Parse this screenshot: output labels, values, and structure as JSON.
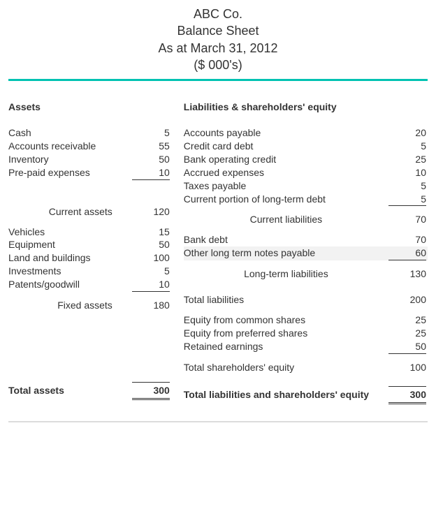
{
  "colors": {
    "teal": "#00c2b2",
    "text": "#333333",
    "highlight_bg": "#f2f2f2",
    "footer_rule": "#dcdcdc",
    "background": "#ffffff"
  },
  "fonts": {
    "family": "Arial, Helvetica, sans-serif",
    "header_size_pt": 14,
    "body_size_pt": 11
  },
  "header": {
    "line1": "ABC Co.",
    "line2": "Balance Sheet",
    "line3": "As at March 31, 2012",
    "line4": "($ 000's)"
  },
  "left": {
    "title": "Assets",
    "current_items": [
      {
        "label": "Cash",
        "value": "5"
      },
      {
        "label": "Accounts receivable",
        "value": "55"
      },
      {
        "label": "Inventory",
        "value": "50"
      },
      {
        "label": "Pre-paid expenses",
        "value": "10"
      }
    ],
    "current_subtotal_label": "Current assets",
    "current_subtotal_value": "120",
    "fixed_items": [
      {
        "label": "Vehicles",
        "value": "15"
      },
      {
        "label": "Equipment",
        "value": "50"
      },
      {
        "label": "Land and buildings",
        "value": "100"
      },
      {
        "label": "Investments",
        "value": "5"
      },
      {
        "label": "Patents/goodwill",
        "value": "10"
      }
    ],
    "fixed_subtotal_label": "Fixed assets",
    "fixed_subtotal_value": "180",
    "total_label": "Total assets",
    "total_value": "300"
  },
  "right": {
    "title": "Liabilities & shareholders' equity",
    "current_items": [
      {
        "label": "Accounts payable",
        "value": "20"
      },
      {
        "label": "Credit card debt",
        "value": "5"
      },
      {
        "label": "Bank operating credit",
        "value": "25"
      },
      {
        "label": "Accrued expenses",
        "value": "10"
      },
      {
        "label": "Taxes payable",
        "value": "5"
      },
      {
        "label": "Current portion of long-term debt",
        "value": "5"
      }
    ],
    "current_subtotal_label": "Current liabilities",
    "current_subtotal_value": "70",
    "longterm_items": [
      {
        "label": "Bank debt",
        "value": "70"
      },
      {
        "label": "Other long term notes payable",
        "value": "60",
        "highlight": true
      }
    ],
    "longterm_subtotal_label": "Long-term liabilities",
    "longterm_subtotal_value": "130",
    "total_liab_label": "Total liabilities",
    "total_liab_value": "200",
    "equity_items": [
      {
        "label": "Equity from common shares",
        "value": "25"
      },
      {
        "label": "Equity from preferred shares",
        "value": "25"
      },
      {
        "label": "Retained earnings",
        "value": "50"
      }
    ],
    "equity_subtotal_label": "Total shareholders' equity",
    "equity_subtotal_value": "100",
    "total_label": "Total liabilities and shareholders' equity",
    "total_value": "300"
  }
}
